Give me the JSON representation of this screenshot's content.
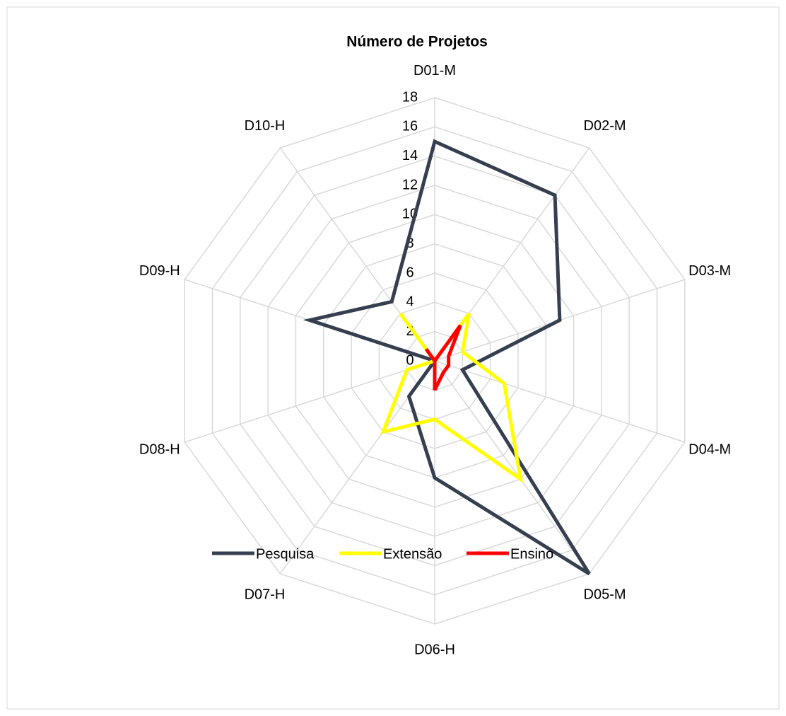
{
  "chart_data": {
    "type": "radar",
    "title": "Número de Projetos",
    "categories": [
      "D01-M",
      "D02-M",
      "D03-M",
      "D04-M",
      "D05-M",
      "D06-H",
      "D07-H",
      "D08-H",
      "D09-H",
      "D10-H"
    ],
    "series": [
      {
        "name": "Pesquisa",
        "color": "#353f4f",
        "values": [
          15,
          14,
          9,
          2,
          18,
          8,
          3,
          0,
          9,
          5
        ]
      },
      {
        "name": "Extensão",
        "color": "#ffff00",
        "values": [
          0,
          4,
          2,
          5,
          10,
          4,
          6,
          2,
          0,
          4
        ]
      },
      {
        "name": "Ensino",
        "color": "#ff0000",
        "values": [
          0,
          3,
          1,
          1,
          1,
          2,
          0,
          0,
          0,
          1
        ]
      }
    ],
    "ylim": [
      0,
      18
    ],
    "yticks": [
      0,
      2,
      4,
      6,
      8,
      10,
      12,
      14,
      16,
      18
    ],
    "grid": true,
    "legend": "bottom"
  }
}
